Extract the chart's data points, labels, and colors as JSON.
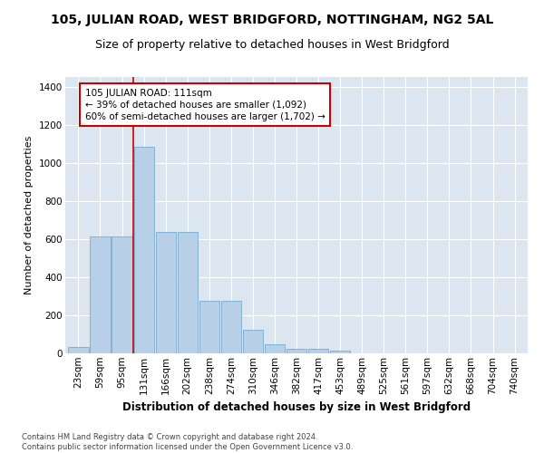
{
  "title": "105, JULIAN ROAD, WEST BRIDGFORD, NOTTINGHAM, NG2 5AL",
  "subtitle": "Size of property relative to detached houses in West Bridgford",
  "xlabel": "Distribution of detached houses by size in West Bridgford",
  "ylabel": "Number of detached properties",
  "categories": [
    "23sqm",
    "59sqm",
    "95sqm",
    "131sqm",
    "166sqm",
    "202sqm",
    "238sqm",
    "274sqm",
    "310sqm",
    "346sqm",
    "382sqm",
    "417sqm",
    "453sqm",
    "489sqm",
    "525sqm",
    "561sqm",
    "597sqm",
    "632sqm",
    "668sqm",
    "704sqm",
    "740sqm"
  ],
  "values": [
    35,
    615,
    615,
    1085,
    635,
    635,
    275,
    275,
    125,
    47,
    22,
    22,
    12,
    0,
    0,
    0,
    0,
    0,
    0,
    0,
    0
  ],
  "bar_color": "#b8cfe8",
  "bar_edge_color": "#7aaad0",
  "vline_color": "#cc0000",
  "vline_pos": 2.5,
  "annotation_text": "105 JULIAN ROAD: 111sqm\n← 39% of detached houses are smaller (1,092)\n60% of semi-detached houses are larger (1,702) →",
  "annotation_box_color": "#cc0000",
  "bg_color": "#dce6f0",
  "ylim": [
    0,
    1450
  ],
  "yticks": [
    0,
    200,
    400,
    600,
    800,
    1000,
    1200,
    1400
  ],
  "footer": "Contains HM Land Registry data © Crown copyright and database right 2024.\nContains public sector information licensed under the Open Government Licence v3.0.",
  "title_fontsize": 10,
  "subtitle_fontsize": 9,
  "xlabel_fontsize": 8.5,
  "ylabel_fontsize": 8,
  "tick_fontsize": 7.5,
  "footer_fontsize": 6,
  "annotation_fontsize": 7.5
}
